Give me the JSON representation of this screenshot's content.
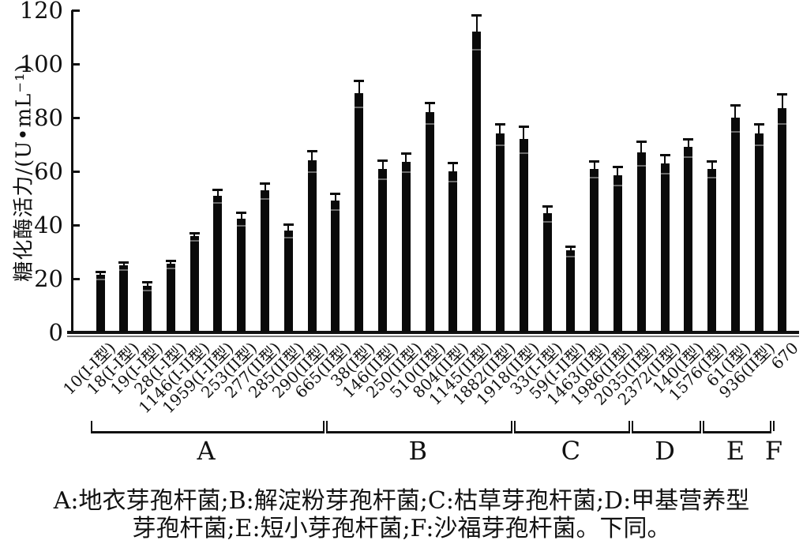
{
  "chart_data": {
    "type": "bar",
    "title": "",
    "xlabel": "",
    "ylabel": "糖化酶活力/(U•mL⁻¹)",
    "ylim": [
      0,
      120
    ],
    "yticks": [
      0,
      20,
      40,
      60,
      80,
      100,
      120
    ],
    "grid": false,
    "legend_position": "none",
    "bar_color": "#0a0a0a",
    "categories": [
      "10(I-I型)",
      "18(I-I型)",
      "19(I-I型)",
      "28(I-I型)",
      "1146(I-II型)",
      "1959(I-II型)",
      "253(II型)",
      "277(II型)",
      "285(II型)",
      "290(II型)",
      "665(II型)",
      "38(I型)",
      "146(II型)",
      "250(II型)",
      "510(II型)",
      "804(II型)",
      "1145(II型)",
      "1882(II型)",
      "1918(II型)",
      "33(I-I型)",
      "59(I-II型)",
      "1463(II型)",
      "1986(II型)",
      "2035(II型)",
      "2372(II型)",
      "140(I型)",
      "1576(I型)",
      "61(I型)",
      "936(II型)",
      "670"
    ],
    "values": [
      21.5,
      25,
      17.5,
      25.5,
      36,
      51,
      42.5,
      53,
      38,
      64,
      49,
      89,
      61,
      63.5,
      82,
      60,
      112,
      74,
      72,
      44.5,
      30.5,
      61,
      58.5,
      67,
      63,
      69,
      61,
      80,
      74,
      83.5
    ],
    "errors": [
      1.5,
      1.5,
      1.5,
      1.5,
      1.5,
      2.5,
      2.5,
      3,
      2.5,
      4,
      3,
      5,
      3.5,
      3.5,
      4,
      3.5,
      6.5,
      4,
      5,
      3,
      2,
      3,
      3.5,
      4.5,
      3.5,
      3.5,
      3,
      5,
      4,
      5.5
    ],
    "groups": [
      {
        "label": "A",
        "from": 0,
        "to": 9
      },
      {
        "label": "B",
        "from": 10,
        "to": 17
      },
      {
        "label": "C",
        "from": 18,
        "to": 22
      },
      {
        "label": "D",
        "from": 23,
        "to": 25
      },
      {
        "label": "E",
        "from": 26,
        "to": 28
      },
      {
        "label": "F",
        "from": 29,
        "to": 29
      }
    ]
  },
  "caption": {
    "line1": "A:地衣芽孢杆菌;B:解淀粉芽孢杆菌;C:枯草芽孢杆菌;D:甲基营养型",
    "line2": "芽孢杆菌;E:短小芽孢杆菌;F:沙福芽孢杆菌。下同。"
  }
}
